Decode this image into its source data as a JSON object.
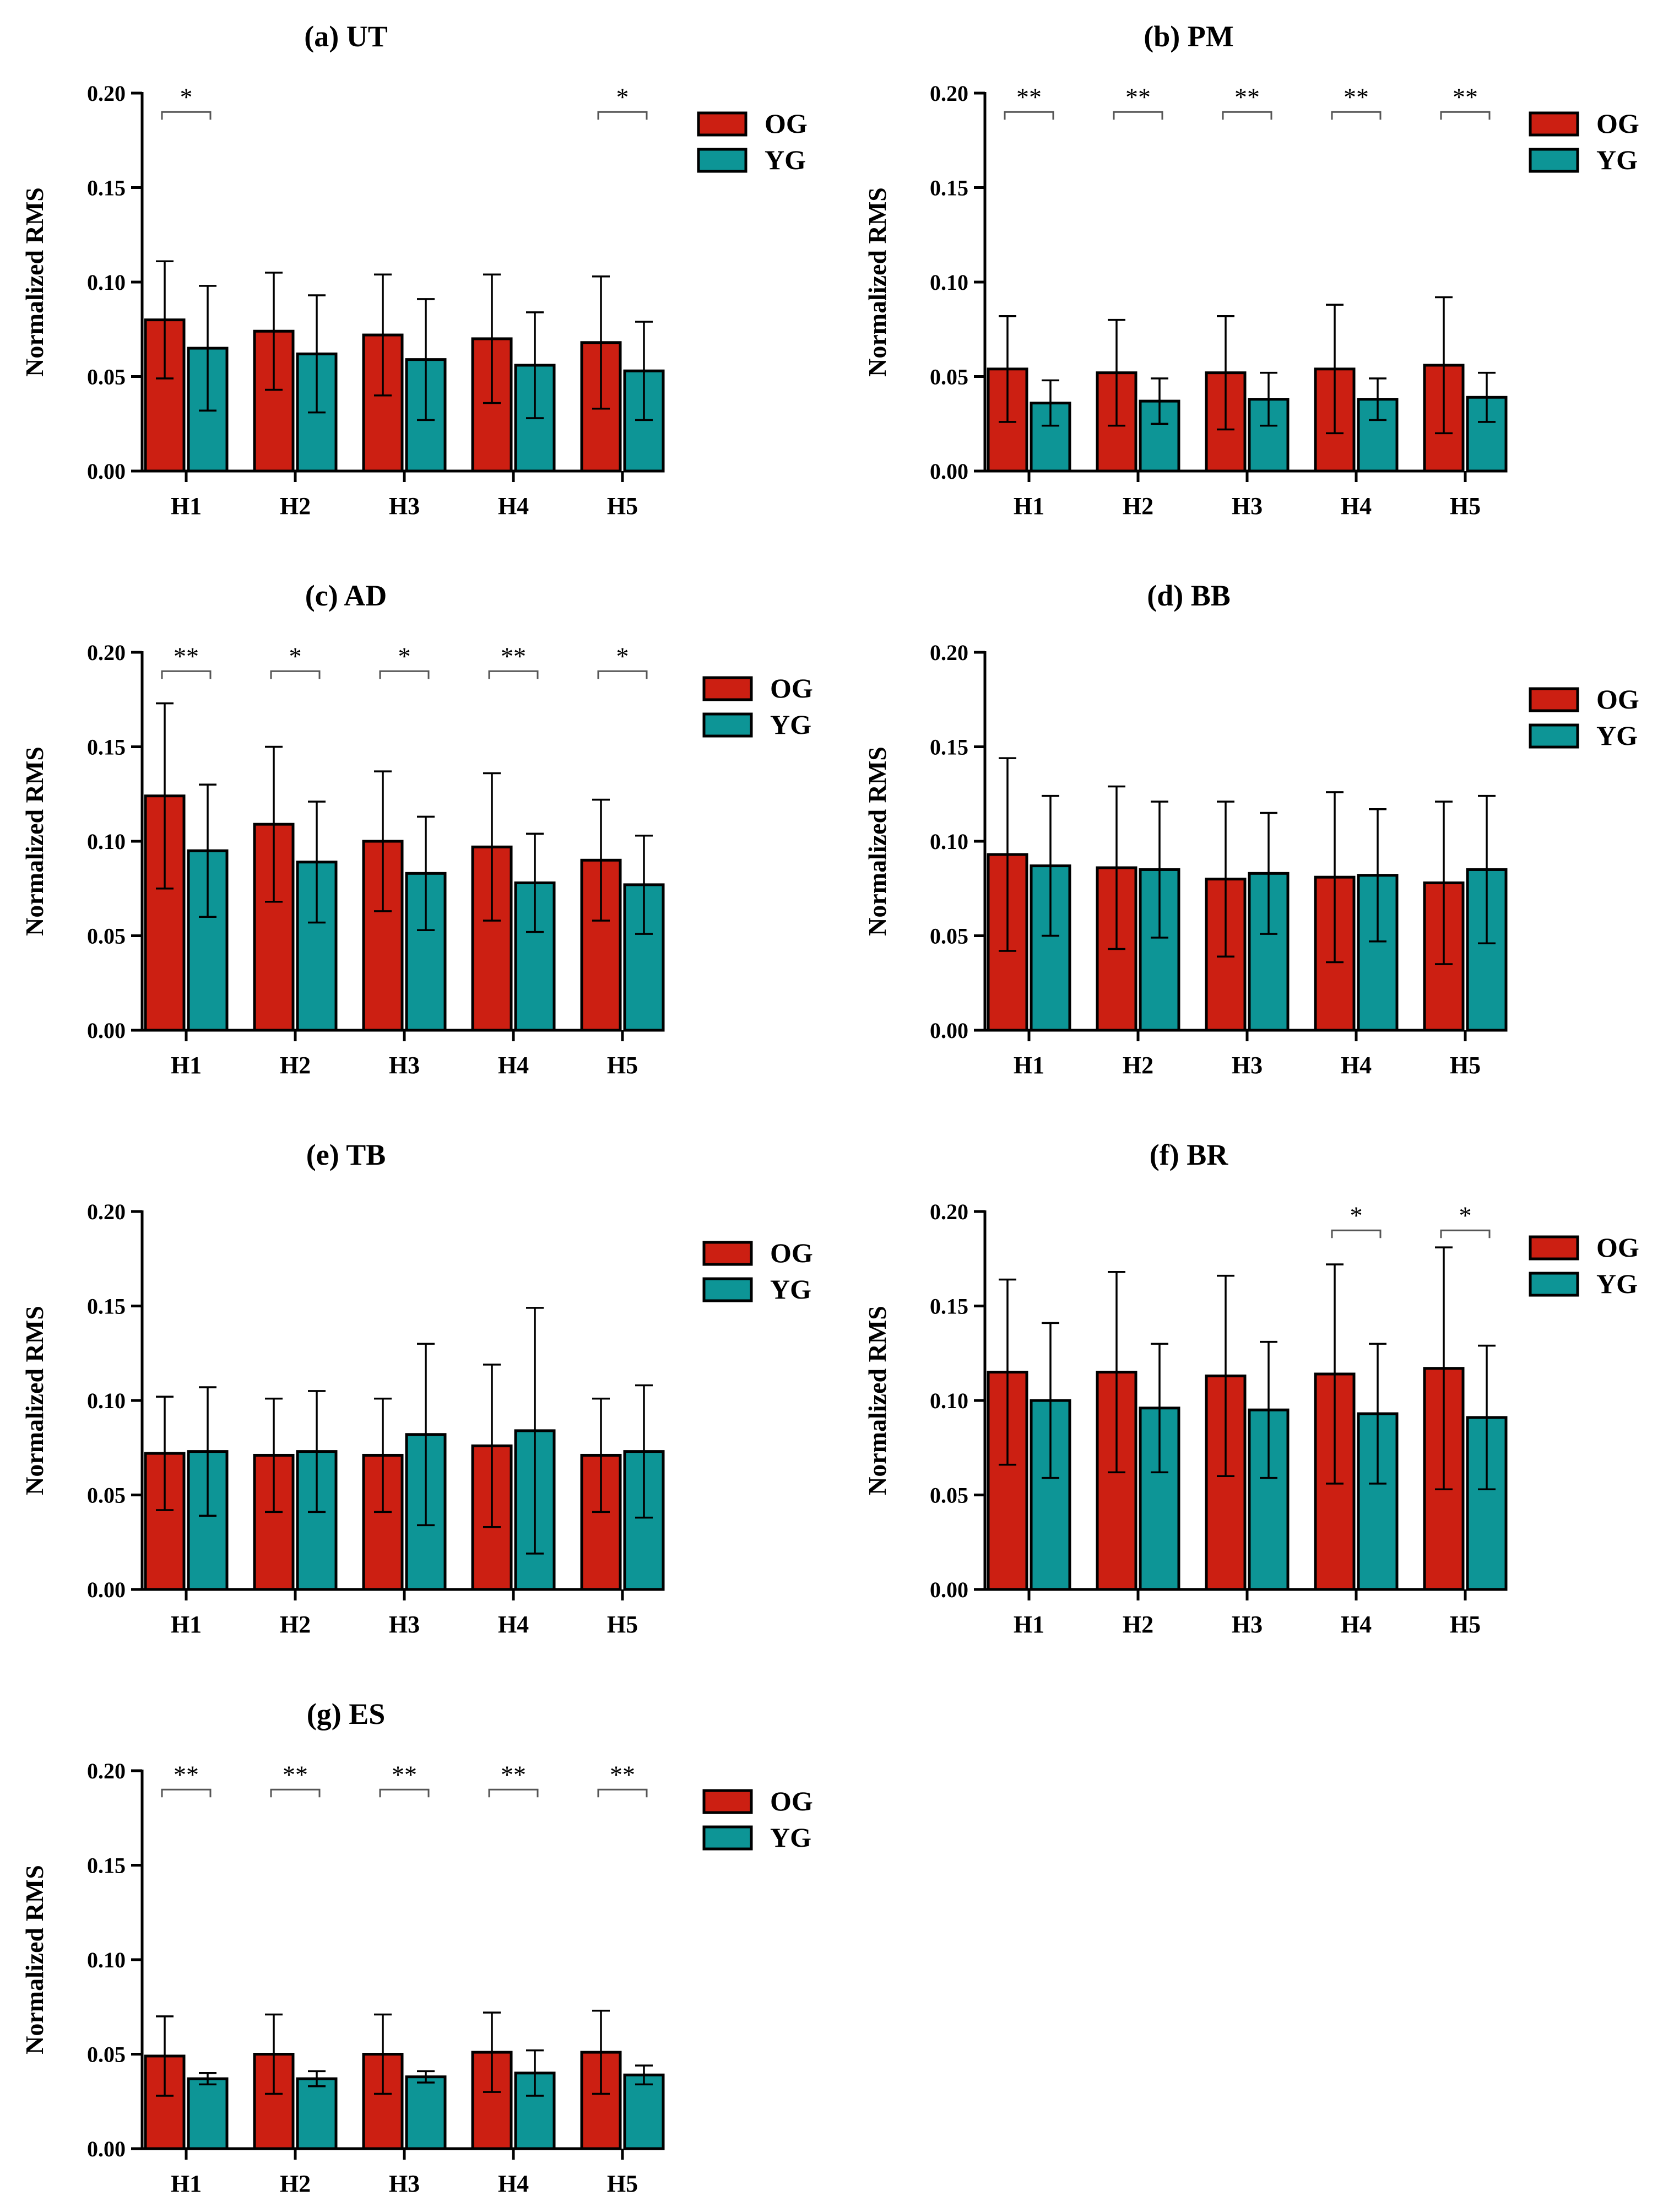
{
  "colors": {
    "og": "#cc1f12",
    "yg": "#0d9596"
  },
  "chart_data": [
    {
      "type": "bar",
      "panel": "a",
      "title": "(a) UT",
      "xlabel": "",
      "ylabel": "Normalized RMS",
      "ylim": [
        0,
        0.2
      ],
      "yticks": [
        "0.00",
        "0.05",
        "0.10",
        "0.15",
        "0.20"
      ],
      "categories": [
        "H1",
        "H2",
        "H3",
        "H4",
        "H5"
      ],
      "series": [
        {
          "name": "OG",
          "values": [
            0.08,
            0.074,
            0.072,
            0.07,
            0.068
          ],
          "err": [
            0.031,
            0.031,
            0.032,
            0.034,
            0.035
          ]
        },
        {
          "name": "YG",
          "values": [
            0.065,
            0.062,
            0.059,
            0.056,
            0.053
          ],
          "err": [
            0.033,
            0.031,
            0.032,
            0.028,
            0.026
          ]
        }
      ],
      "significance": [
        {
          "category": "H1",
          "label": "*"
        },
        {
          "category": "H5",
          "label": "*"
        }
      ]
    },
    {
      "type": "bar",
      "panel": "b",
      "title": "(b) PM",
      "xlabel": "",
      "ylabel": "Normalized RMS",
      "ylim": [
        0,
        0.2
      ],
      "yticks": [
        "0.00",
        "0.05",
        "0.10",
        "0.15",
        "0.20"
      ],
      "categories": [
        "H1",
        "H2",
        "H3",
        "H4",
        "H5"
      ],
      "series": [
        {
          "name": "OG",
          "values": [
            0.054,
            0.052,
            0.052,
            0.054,
            0.056
          ],
          "err": [
            0.028,
            0.028,
            0.03,
            0.034,
            0.036
          ]
        },
        {
          "name": "YG",
          "values": [
            0.036,
            0.037,
            0.038,
            0.038,
            0.039
          ],
          "err": [
            0.012,
            0.012,
            0.014,
            0.011,
            0.013
          ]
        }
      ],
      "significance": [
        {
          "category": "H1",
          "label": "**"
        },
        {
          "category": "H2",
          "label": "**"
        },
        {
          "category": "H3",
          "label": "**"
        },
        {
          "category": "H4",
          "label": "**"
        },
        {
          "category": "H5",
          "label": "**"
        }
      ]
    },
    {
      "type": "bar",
      "panel": "c",
      "title": "(c) AD",
      "xlabel": "",
      "ylabel": "Normalized RMS",
      "ylim": [
        0,
        0.2
      ],
      "yticks": [
        "0.00",
        "0.05",
        "0.10",
        "0.15",
        "0.20"
      ],
      "categories": [
        "H1",
        "H2",
        "H3",
        "H4",
        "H5"
      ],
      "series": [
        {
          "name": "OG",
          "values": [
            0.124,
            0.109,
            0.1,
            0.097,
            0.09
          ],
          "err": [
            0.049,
            0.041,
            0.037,
            0.039,
            0.032
          ]
        },
        {
          "name": "YG",
          "values": [
            0.095,
            0.089,
            0.083,
            0.078,
            0.077
          ],
          "err": [
            0.035,
            0.032,
            0.03,
            0.026,
            0.026
          ]
        }
      ],
      "significance": [
        {
          "category": "H1",
          "label": "**"
        },
        {
          "category": "H2",
          "label": "*"
        },
        {
          "category": "H3",
          "label": "*"
        },
        {
          "category": "H4",
          "label": "**"
        },
        {
          "category": "H5",
          "label": "*"
        }
      ]
    },
    {
      "type": "bar",
      "panel": "d",
      "title": "(d) BB",
      "xlabel": "",
      "ylabel": "Normalized RMS",
      "ylim": [
        0,
        0.2
      ],
      "yticks": [
        "0.00",
        "0.05",
        "0.10",
        "0.15",
        "0.20"
      ],
      "categories": [
        "H1",
        "H2",
        "H3",
        "H4",
        "H5"
      ],
      "series": [
        {
          "name": "OG",
          "values": [
            0.093,
            0.086,
            0.08,
            0.081,
            0.078
          ],
          "err": [
            0.051,
            0.043,
            0.041,
            0.045,
            0.043
          ]
        },
        {
          "name": "YG",
          "values": [
            0.087,
            0.085,
            0.083,
            0.082,
            0.085
          ],
          "err": [
            0.037,
            0.036,
            0.032,
            0.035,
            0.039
          ]
        }
      ],
      "significance": []
    },
    {
      "type": "bar",
      "panel": "e",
      "title": "(e) TB",
      "xlabel": "",
      "ylabel": "Normalized RMS",
      "ylim": [
        0,
        0.2
      ],
      "yticks": [
        "0.00",
        "0.05",
        "0.10",
        "0.15",
        "0.20"
      ],
      "categories": [
        "H1",
        "H2",
        "H3",
        "H4",
        "H5"
      ],
      "series": [
        {
          "name": "OG",
          "values": [
            0.072,
            0.071,
            0.071,
            0.076,
            0.071
          ],
          "err": [
            0.03,
            0.03,
            0.03,
            0.043,
            0.03
          ]
        },
        {
          "name": "YG",
          "values": [
            0.073,
            0.073,
            0.082,
            0.084,
            0.073
          ],
          "err": [
            0.034,
            0.032,
            0.048,
            0.065,
            0.035
          ]
        }
      ],
      "significance": []
    },
    {
      "type": "bar",
      "panel": "f",
      "title": "(f) BR",
      "xlabel": "",
      "ylabel": "Normalized RMS",
      "ylim": [
        0,
        0.2
      ],
      "yticks": [
        "0.00",
        "0.05",
        "0.10",
        "0.15",
        "0.20"
      ],
      "categories": [
        "H1",
        "H2",
        "H3",
        "H4",
        "H5"
      ],
      "series": [
        {
          "name": "OG",
          "values": [
            0.115,
            0.115,
            0.113,
            0.114,
            0.117
          ],
          "err": [
            0.049,
            0.053,
            0.053,
            0.058,
            0.064
          ]
        },
        {
          "name": "YG",
          "values": [
            0.1,
            0.096,
            0.095,
            0.093,
            0.091
          ],
          "err": [
            0.041,
            0.034,
            0.036,
            0.037,
            0.038
          ]
        }
      ],
      "significance": [
        {
          "category": "H4",
          "label": "*"
        },
        {
          "category": "H5",
          "label": "*"
        }
      ]
    },
    {
      "type": "bar",
      "panel": "g",
      "title": "(g) ES",
      "xlabel": "",
      "ylabel": "Normalized RMS",
      "ylim": [
        0,
        0.2
      ],
      "yticks": [
        "0.00",
        "0.05",
        "0.10",
        "0.15",
        "0.20"
      ],
      "categories": [
        "H1",
        "H2",
        "H3",
        "H4",
        "H5"
      ],
      "series": [
        {
          "name": "OG",
          "values": [
            0.049,
            0.05,
            0.05,
            0.051,
            0.051
          ],
          "err": [
            0.021,
            0.021,
            0.021,
            0.021,
            0.022
          ]
        },
        {
          "name": "YG",
          "values": [
            0.037,
            0.037,
            0.038,
            0.04,
            0.039
          ],
          "err": [
            0.003,
            0.004,
            0.003,
            0.012,
            0.005
          ]
        }
      ],
      "significance": [
        {
          "category": "H1",
          "label": "**"
        },
        {
          "category": "H2",
          "label": "**"
        },
        {
          "category": "H3",
          "label": "**"
        },
        {
          "category": "H4",
          "label": "**"
        },
        {
          "category": "H5",
          "label": "**"
        }
      ]
    }
  ]
}
